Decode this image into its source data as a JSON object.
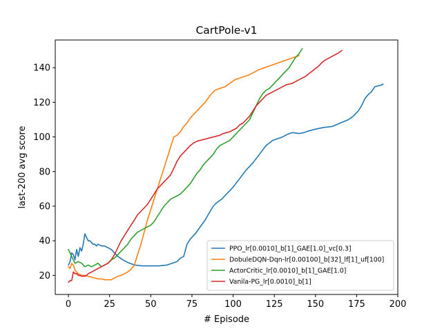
{
  "chart_data": {
    "type": "line",
    "title": "CartPole-v1",
    "xlabel": "# Episode",
    "ylabel": "last-200 avg score",
    "xlim": [
      -8,
      200
    ],
    "ylim": [
      9,
      156
    ],
    "xticks": [
      0,
      25,
      50,
      75,
      100,
      125,
      150,
      175,
      200
    ],
    "yticks": [
      20,
      40,
      60,
      80,
      100,
      120,
      140
    ],
    "grid": false,
    "legend_position": "lower-right",
    "series": [
      {
        "name": "PPO_lr[0.0010]_b[1]_GAE[1.0]_vc[0.3]",
        "color": "#1f77b4",
        "x": [
          0,
          1,
          2,
          3,
          4,
          5,
          6,
          7,
          8,
          9,
          10,
          11,
          12,
          13,
          14,
          15,
          16,
          17,
          18,
          20,
          22,
          24,
          26,
          28,
          30,
          33,
          36,
          40,
          45,
          50,
          55,
          60,
          63,
          66,
          68,
          70,
          72,
          74,
          77,
          80,
          83,
          86,
          88,
          90,
          93,
          96,
          100,
          104,
          108,
          112,
          116,
          120,
          124,
          127,
          130,
          133,
          136,
          140,
          143,
          146,
          150,
          155,
          160,
          165,
          170,
          173,
          176,
          178,
          180,
          182,
          184,
          186,
          188,
          190,
          191
        ],
        "y": [
          26,
          28,
          33,
          32,
          29,
          35,
          31,
          36,
          34,
          38,
          44,
          42,
          40,
          40,
          39,
          38,
          38,
          37,
          38,
          37,
          37,
          36,
          35,
          33,
          31,
          29,
          27.5,
          26,
          25.5,
          25.5,
          25.5,
          26,
          27,
          28,
          30,
          31,
          38,
          41,
          44,
          48,
          52,
          57,
          60,
          62,
          64,
          67,
          71,
          76,
          81,
          85,
          90,
          95,
          98,
          99,
          100,
          101.5,
          102.5,
          102,
          102.5,
          103.5,
          104.5,
          105.5,
          106,
          108,
          110,
          112,
          115,
          118,
          122,
          124.5,
          126,
          129,
          129.5,
          130,
          130.5
        ]
      },
      {
        "name": "DobuleDQN-Dqn-lr[0.00100]_b[32]_lf[1]_uf[100]",
        "color": "#ff7f0e",
        "x": [
          0,
          1,
          2,
          3,
          4,
          5,
          6,
          8,
          10,
          12,
          14,
          16,
          18,
          20,
          22,
          24,
          26,
          28,
          30,
          32,
          34,
          36,
          38,
          40,
          42,
          44,
          46,
          48,
          50,
          52,
          54,
          56,
          58,
          60,
          62,
          64,
          66,
          68,
          70,
          72,
          74,
          76,
          78,
          80,
          83,
          86,
          89,
          92,
          95,
          98,
          101,
          104,
          107,
          110,
          113,
          116,
          119,
          122,
          125,
          128,
          131,
          134,
          137,
          140
        ],
        "y": [
          25,
          24,
          27,
          26,
          23,
          22,
          21,
          20,
          20,
          19.5,
          19,
          18.5,
          18,
          18,
          17.5,
          17.5,
          17.5,
          18.5,
          19.5,
          20,
          21,
          22,
          23.5,
          26,
          32,
          38,
          45,
          52,
          58,
          64,
          70,
          76,
          82,
          88,
          94,
          100,
          101,
          103,
          106,
          108,
          111,
          113,
          115,
          117,
          120,
          124,
          127,
          128,
          129,
          131,
          133,
          134,
          135,
          136,
          137.5,
          139,
          140,
          141,
          142,
          143,
          144,
          145,
          146,
          147
        ]
      },
      {
        "name": "ActorCritic_lr[0.0010]_b[1]_GAE[1.0]",
        "color": "#2ca02c",
        "x": [
          0,
          2,
          4,
          6,
          8,
          10,
          12,
          14,
          16,
          18,
          20,
          22,
          24,
          26,
          28,
          30,
          32,
          34,
          36,
          38,
          40,
          42,
          44,
          46,
          48,
          50,
          52,
          54,
          56,
          58,
          60,
          62,
          64,
          66,
          68,
          70,
          72,
          74,
          76,
          78,
          80,
          82,
          84,
          86,
          88,
          90,
          92,
          94,
          96,
          98,
          100,
          102,
          104,
          106,
          108,
          110,
          112,
          114,
          116,
          118,
          120,
          122,
          124,
          126,
          128,
          130,
          132,
          134,
          136,
          138,
          140,
          142
        ],
        "y": [
          35,
          31,
          27,
          28,
          27,
          25,
          26,
          25,
          26,
          27,
          25,
          26,
          27,
          29,
          30,
          32,
          34,
          36,
          38,
          41,
          43,
          45,
          46,
          47,
          48,
          49,
          51,
          54,
          57,
          60,
          62,
          64,
          65,
          66,
          67,
          69,
          71,
          73,
          76,
          79,
          81,
          84,
          86,
          88,
          90,
          93,
          95,
          96,
          97,
          98,
          100,
          102,
          104,
          106,
          108,
          110,
          114,
          118,
          122,
          125,
          127,
          128,
          130,
          132,
          134,
          136,
          138,
          140,
          143,
          146,
          148,
          151
        ]
      },
      {
        "name": "Vanila-PG_lr[0.0010]_b[1]",
        "color": "#d62728",
        "x": [
          0,
          1,
          2,
          3,
          4,
          5,
          6,
          7,
          8,
          9,
          10,
          11,
          12,
          14,
          16,
          18,
          20,
          22,
          24,
          26,
          28,
          30,
          32,
          34,
          36,
          38,
          40,
          42,
          44,
          46,
          48,
          50,
          52,
          54,
          56,
          58,
          60,
          62,
          64,
          66,
          68,
          70,
          72,
          74,
          76,
          78,
          80,
          82,
          84,
          86,
          88,
          90,
          92,
          94,
          96,
          98,
          100,
          102,
          104,
          106,
          108,
          110,
          112,
          114,
          116,
          118,
          120,
          122,
          124,
          126,
          128,
          130,
          132,
          134,
          136,
          138,
          140,
          142,
          144,
          146,
          148,
          150,
          152,
          154,
          156,
          158,
          160,
          162,
          164,
          166
        ],
        "y": [
          16,
          17,
          17,
          22,
          21,
          21,
          20,
          20,
          19.5,
          19.5,
          19.5,
          20,
          21,
          22,
          23,
          24,
          25,
          26,
          27,
          29,
          32,
          36,
          40,
          43,
          46,
          49,
          52,
          55,
          57,
          59,
          61,
          64,
          67,
          70,
          72,
          74,
          76,
          78,
          82,
          86,
          89,
          91,
          93,
          95,
          96.5,
          97.5,
          98,
          98.5,
          99,
          99.5,
          100,
          100.5,
          101,
          102,
          102.5,
          103,
          104,
          105,
          107,
          108,
          110,
          112,
          115,
          118,
          120,
          122,
          124,
          125,
          126,
          127,
          128,
          129,
          130,
          130.5,
          131,
          132,
          133,
          134,
          135,
          136.5,
          138,
          139.5,
          141,
          143,
          144.5,
          145.5,
          146.5,
          147.5,
          148.5,
          150
        ]
      }
    ]
  }
}
